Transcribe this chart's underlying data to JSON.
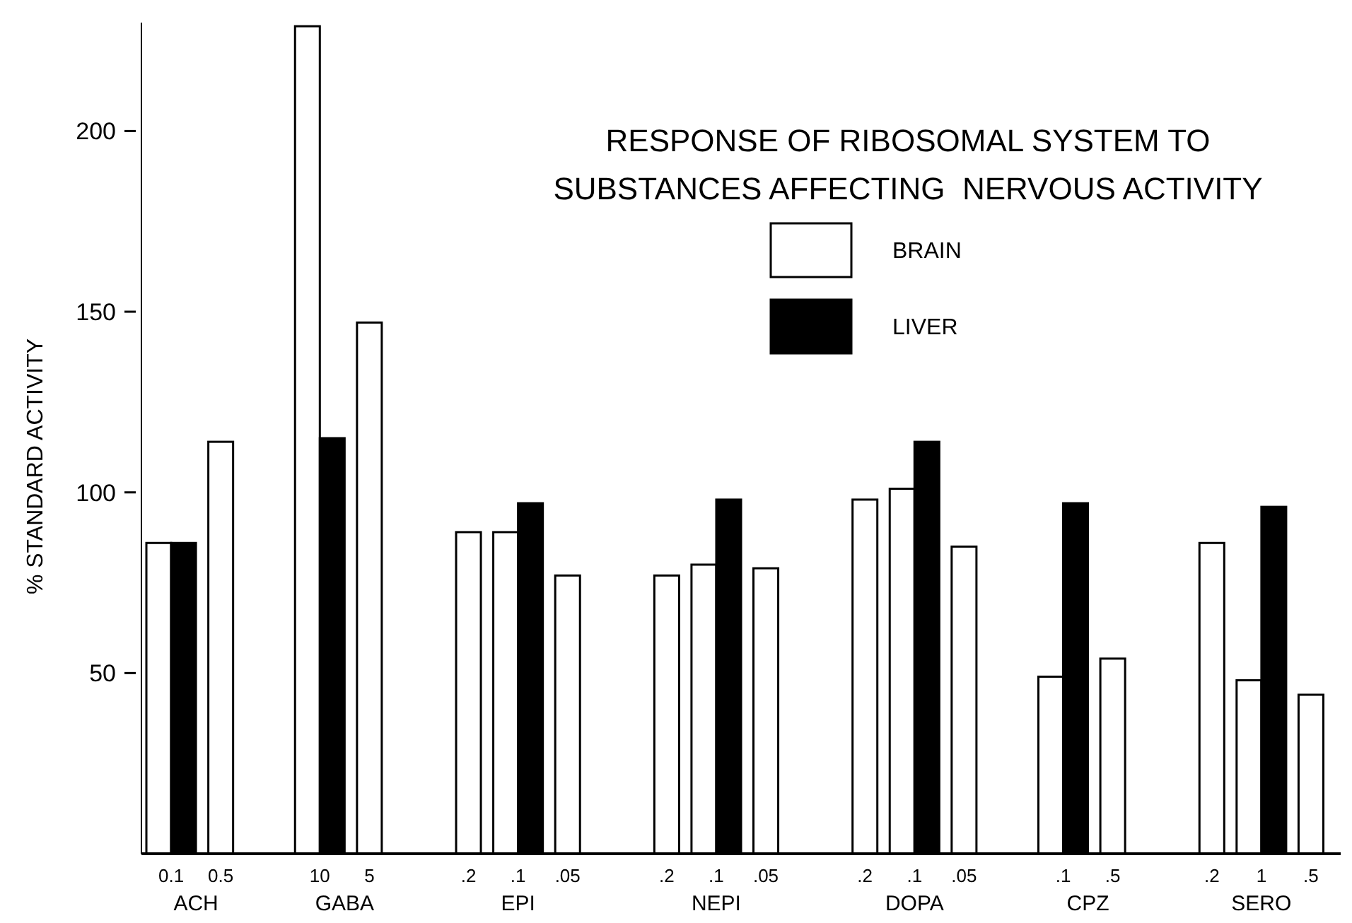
{
  "chart_data": {
    "type": "bar",
    "title": "RESPONSE OF RIBOSOMAL SYSTEM TO\nSUBSTANCES AFFECTING  NERVOUS ACTIVITY",
    "ylabel": "% STANDARD  ACTIVITY",
    "categories": [
      "0.1",
      "0.5",
      null,
      "10",
      "5",
      null,
      ".2",
      ".1",
      ".05",
      null,
      ".2",
      ".1",
      ".05",
      null,
      ".2",
      ".1",
      ".05",
      null,
      ".1",
      ".5",
      null,
      ".2",
      "1",
      ".5"
    ],
    "series": [
      {
        "name": "BRAIN",
        "color": "#ffffff",
        "values": [
          86,
          114,
          null,
          229,
          147,
          null,
          89,
          89,
          77,
          null,
          77,
          80,
          79,
          null,
          98,
          101,
          85,
          null,
          49,
          54,
          null,
          86,
          48,
          44
        ]
      },
      {
        "name": "LIVER",
        "color": "#000000",
        "values": [
          86,
          null,
          null,
          115,
          null,
          null,
          null,
          97,
          null,
          null,
          null,
          98,
          null,
          null,
          null,
          114,
          null,
          null,
          97,
          null,
          null,
          null,
          96,
          null
        ]
      }
    ],
    "annotations": [
      "ACH",
      "GABA",
      "EPI",
      "NEPI",
      "DOPA",
      "CPZ",
      "SERO"
    ],
    "ylim": [
      0,
      230
    ],
    "yticks": [
      50,
      100,
      150,
      200
    ],
    "grid": false,
    "legend": "top right"
  }
}
